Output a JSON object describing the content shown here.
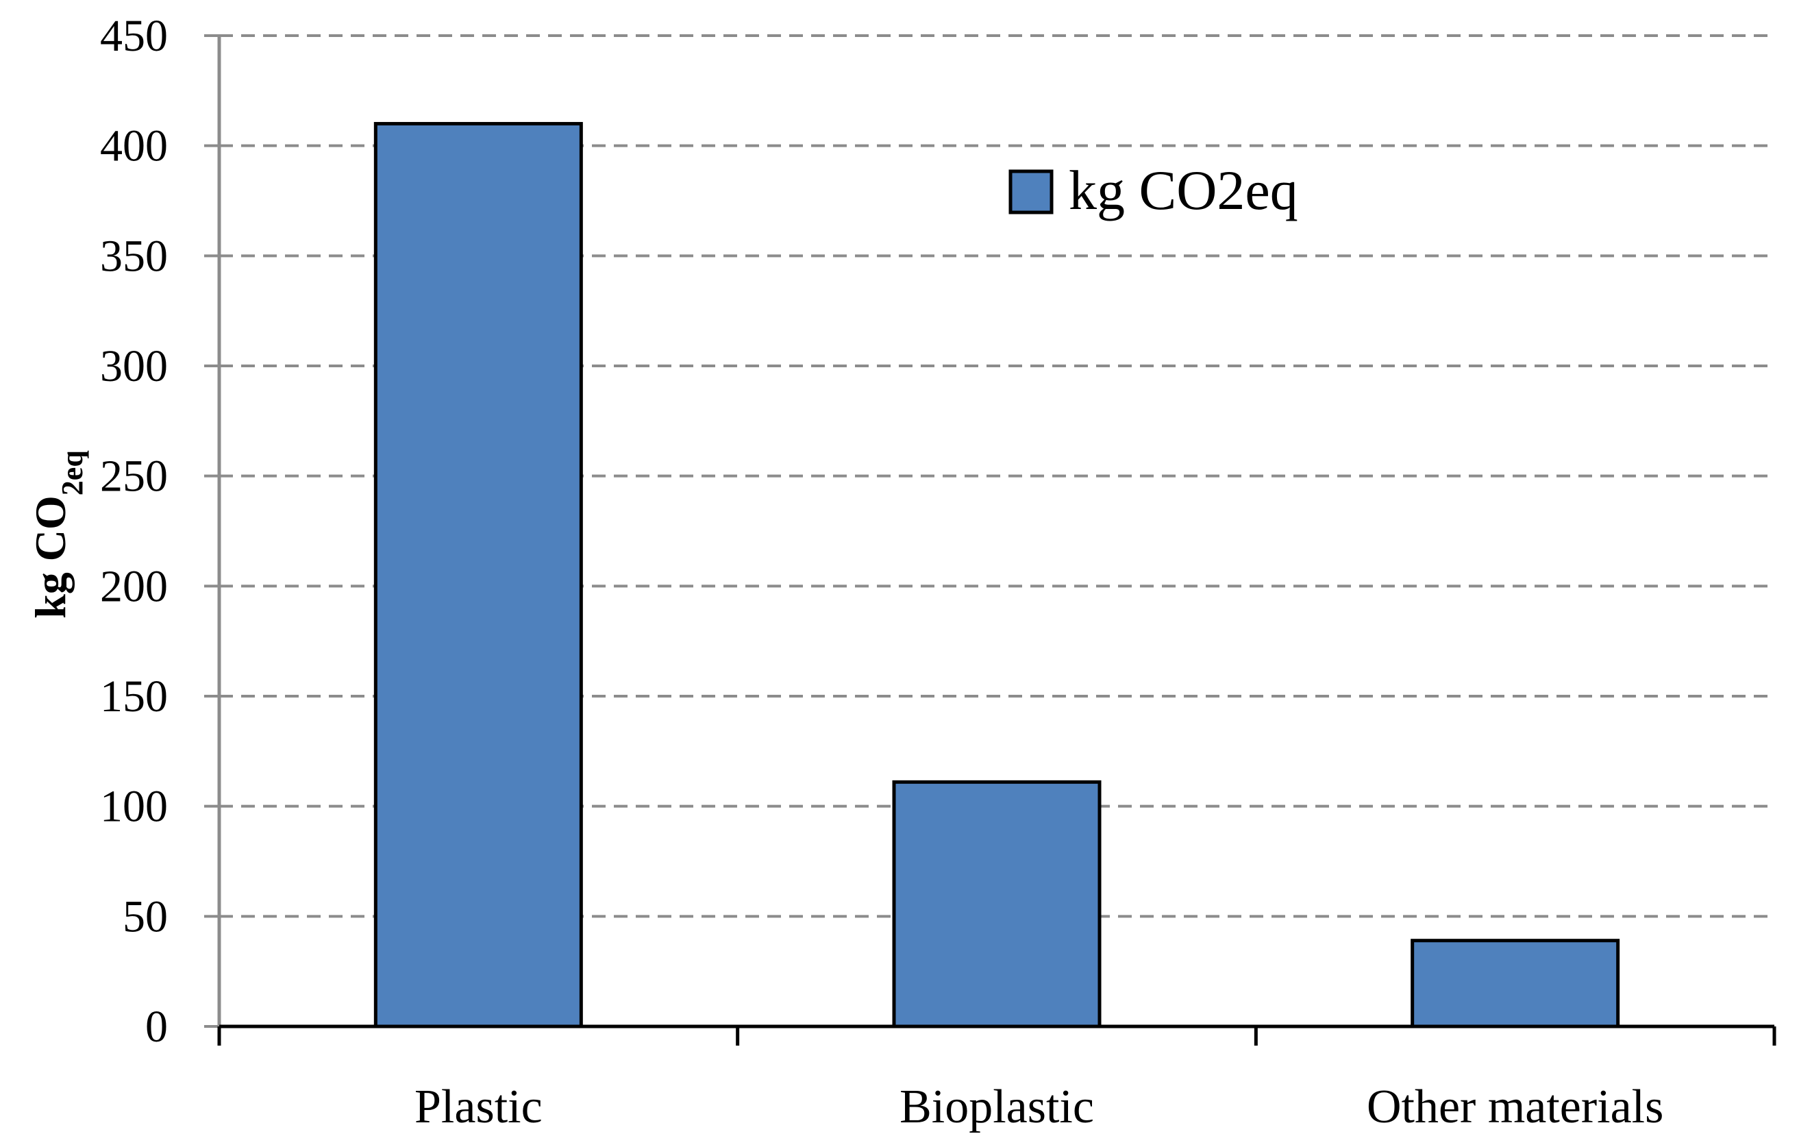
{
  "chart_data": {
    "type": "bar",
    "categories": [
      "Plastic",
      "Bioplastic",
      "Other materials"
    ],
    "series": [
      {
        "name": "kg CO2eq",
        "values": [
          410,
          111,
          39
        ],
        "color": "#4f81bd"
      }
    ],
    "ylabel": {
      "main": "kg CO",
      "sub": "2eq"
    },
    "ylim": [
      0,
      450
    ],
    "yticks": [
      0,
      50,
      100,
      150,
      200,
      250,
      300,
      350,
      400,
      450
    ],
    "grid": true,
    "legend": "top-right",
    "colors": {
      "bar": "#4f81bd",
      "grid": "#8c8c8c",
      "axis": "#8c8c8c"
    }
  }
}
